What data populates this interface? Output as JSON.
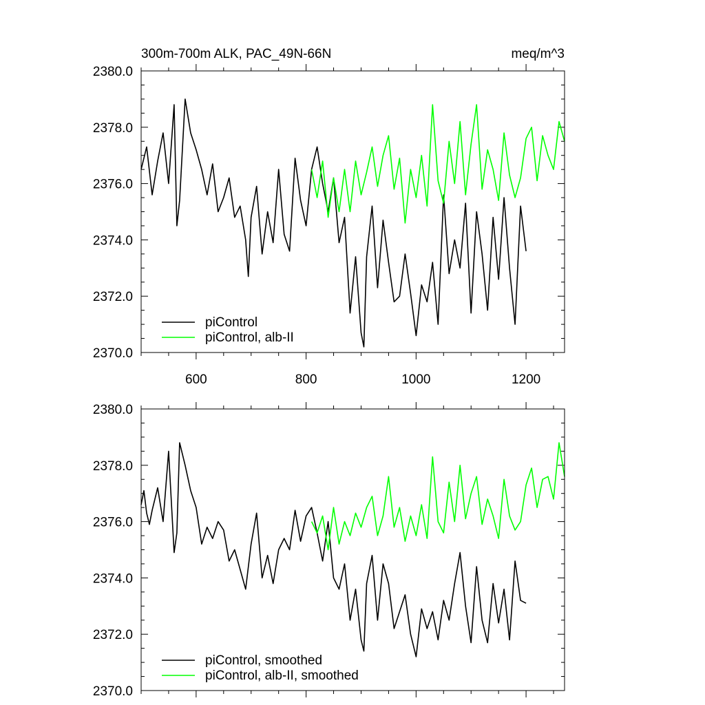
{
  "chart_data": [
    {
      "type": "line",
      "title": "300m-700m ALK, PAC_49N-66N",
      "units": "meq/m^3",
      "xlim": [
        500,
        1270
      ],
      "ylim": [
        2370,
        2380
      ],
      "xticks": [
        600,
        800,
        1000,
        1200
      ],
      "xtick_labels": [
        "600",
        "800",
        "1000",
        "1200"
      ],
      "yticks": [
        2370,
        2372,
        2374,
        2376,
        2378,
        2380
      ],
      "ytick_labels": [
        "2370.0",
        "2372.0",
        "2374.0",
        "2376.0",
        "2378.0",
        "2380.0"
      ],
      "grid": false,
      "legend_position": "bottom-left",
      "series": [
        {
          "name": "piControl",
          "color": "#000000",
          "x": [
            500,
            510,
            520,
            530,
            540,
            550,
            560,
            565,
            570,
            580,
            590,
            600,
            610,
            620,
            630,
            640,
            650,
            660,
            670,
            680,
            690,
            695,
            700,
            710,
            720,
            730,
            740,
            750,
            760,
            770,
            780,
            790,
            800,
            810,
            820,
            830,
            840,
            850,
            860,
            870,
            880,
            890,
            900,
            905,
            910,
            920,
            930,
            940,
            950,
            960,
            970,
            980,
            990,
            1000,
            1010,
            1020,
            1030,
            1040,
            1050,
            1060,
            1070,
            1080,
            1090,
            1100,
            1110,
            1120,
            1130,
            1140,
            1150,
            1160,
            1170,
            1180,
            1190,
            1200
          ],
          "y": [
            2376.5,
            2377.3,
            2375.6,
            2376.8,
            2377.8,
            2376.0,
            2378.8,
            2374.5,
            2375.4,
            2379.0,
            2377.8,
            2377.2,
            2376.5,
            2375.6,
            2376.7,
            2375.0,
            2375.5,
            2376.2,
            2374.8,
            2375.2,
            2374.0,
            2372.7,
            2374.8,
            2375.9,
            2373.5,
            2375.0,
            2373.9,
            2376.5,
            2374.2,
            2373.6,
            2376.9,
            2375.4,
            2374.5,
            2376.5,
            2377.3,
            2376.0,
            2375.0,
            2376.2,
            2373.9,
            2374.8,
            2371.4,
            2373.4,
            2370.7,
            2370.2,
            2373.4,
            2375.2,
            2372.3,
            2374.7,
            2373.2,
            2371.8,
            2372.0,
            2373.5,
            2372.1,
            2370.6,
            2372.4,
            2371.8,
            2373.2,
            2371.0,
            2375.6,
            2372.8,
            2374.0,
            2373.0,
            2375.3,
            2371.4,
            2375.0,
            2373.5,
            2371.5,
            2374.8,
            2372.6,
            2375.5,
            2373.0,
            2371.0,
            2375.2,
            2373.6
          ]
        },
        {
          "name": "piControl, alb-II",
          "color": "#00ff00",
          "x": [
            810,
            820,
            830,
            840,
            850,
            860,
            870,
            880,
            890,
            900,
            910,
            920,
            930,
            940,
            950,
            960,
            970,
            980,
            990,
            1000,
            1010,
            1020,
            1030,
            1040,
            1050,
            1060,
            1070,
            1080,
            1090,
            1100,
            1110,
            1120,
            1130,
            1140,
            1150,
            1160,
            1170,
            1180,
            1190,
            1200,
            1210,
            1220,
            1230,
            1240,
            1250,
            1260,
            1270
          ],
          "y": [
            2376.5,
            2375.5,
            2376.8,
            2374.8,
            2376.2,
            2375.0,
            2376.5,
            2375.0,
            2376.8,
            2375.6,
            2376.4,
            2377.3,
            2375.9,
            2377.0,
            2377.7,
            2375.8,
            2376.9,
            2374.6,
            2376.5,
            2375.5,
            2377.0,
            2375.2,
            2378.8,
            2376.1,
            2375.3,
            2377.5,
            2376.0,
            2378.2,
            2375.6,
            2377.4,
            2378.8,
            2375.8,
            2377.2,
            2376.5,
            2375.4,
            2377.8,
            2376.3,
            2375.5,
            2376.2,
            2377.6,
            2378.0,
            2376.1,
            2377.7,
            2377.0,
            2376.5,
            2378.2,
            2377.5
          ]
        }
      ]
    },
    {
      "type": "line",
      "xlim": [
        500,
        1270
      ],
      "ylim": [
        2370,
        2380
      ],
      "xticks": [
        600,
        800,
        1000,
        1200
      ],
      "yticks": [
        2370,
        2372,
        2374,
        2376,
        2378,
        2380
      ],
      "ytick_labels": [
        "2370.0",
        "2372.0",
        "2374.0",
        "2376.0",
        "2378.0",
        "2380.0"
      ],
      "grid": false,
      "legend_position": "bottom-left",
      "series": [
        {
          "name": "piControl, smoothed",
          "color": "#000000",
          "x": [
            500,
            505,
            510,
            515,
            520,
            530,
            540,
            550,
            560,
            565,
            570,
            580,
            590,
            600,
            610,
            620,
            630,
            640,
            650,
            660,
            670,
            680,
            690,
            700,
            710,
            720,
            730,
            740,
            750,
            760,
            770,
            780,
            790,
            800,
            810,
            820,
            830,
            840,
            850,
            860,
            870,
            880,
            890,
            900,
            905,
            910,
            920,
            930,
            940,
            950,
            960,
            970,
            980,
            990,
            1000,
            1010,
            1020,
            1030,
            1040,
            1050,
            1060,
            1070,
            1080,
            1090,
            1100,
            1110,
            1120,
            1130,
            1140,
            1150,
            1160,
            1170,
            1180,
            1190,
            1200
          ],
          "y": [
            2376.6,
            2377.1,
            2376.3,
            2375.9,
            2376.4,
            2377.2,
            2376.0,
            2378.5,
            2374.9,
            2375.6,
            2378.8,
            2378.0,
            2377.1,
            2376.5,
            2375.2,
            2375.8,
            2375.4,
            2376.0,
            2375.7,
            2374.6,
            2375.0,
            2374.3,
            2373.6,
            2375.2,
            2376.3,
            2374.0,
            2374.8,
            2373.8,
            2375.0,
            2375.4,
            2375.0,
            2376.4,
            2375.3,
            2376.2,
            2376.5,
            2375.6,
            2374.6,
            2376.0,
            2374.0,
            2373.6,
            2374.5,
            2372.5,
            2373.6,
            2371.8,
            2371.4,
            2373.8,
            2374.8,
            2372.5,
            2374.5,
            2373.8,
            2372.2,
            2372.8,
            2373.4,
            2372.0,
            2371.2,
            2372.9,
            2372.2,
            2372.8,
            2371.8,
            2373.2,
            2372.5,
            2373.8,
            2374.9,
            2373.0,
            2371.7,
            2374.4,
            2372.5,
            2371.7,
            2373.8,
            2372.4,
            2373.6,
            2371.8,
            2374.6,
            2373.2,
            2373.1
          ]
        },
        {
          "name": "piControl, alb-II, smoothed",
          "color": "#00ff00",
          "x": [
            810,
            820,
            830,
            840,
            850,
            860,
            870,
            880,
            890,
            900,
            910,
            920,
            930,
            940,
            950,
            960,
            970,
            980,
            990,
            1000,
            1010,
            1020,
            1030,
            1040,
            1050,
            1060,
            1070,
            1080,
            1090,
            1100,
            1110,
            1120,
            1130,
            1140,
            1150,
            1160,
            1170,
            1180,
            1190,
            1200,
            1210,
            1220,
            1230,
            1240,
            1250,
            1260,
            1270
          ],
          "y": [
            2376.0,
            2375.6,
            2376.2,
            2375.0,
            2376.5,
            2375.2,
            2376.0,
            2375.5,
            2376.3,
            2375.8,
            2376.5,
            2376.9,
            2375.5,
            2376.2,
            2377.6,
            2375.8,
            2376.5,
            2375.3,
            2376.2,
            2375.5,
            2376.6,
            2375.4,
            2378.3,
            2376.0,
            2375.6,
            2377.4,
            2376.0,
            2378.0,
            2376.1,
            2377.0,
            2377.6,
            2375.9,
            2376.8,
            2376.2,
            2375.4,
            2377.5,
            2376.2,
            2375.7,
            2376.0,
            2377.3,
            2377.9,
            2376.5,
            2377.5,
            2377.6,
            2376.8,
            2378.8,
            2377.6
          ]
        }
      ]
    }
  ]
}
